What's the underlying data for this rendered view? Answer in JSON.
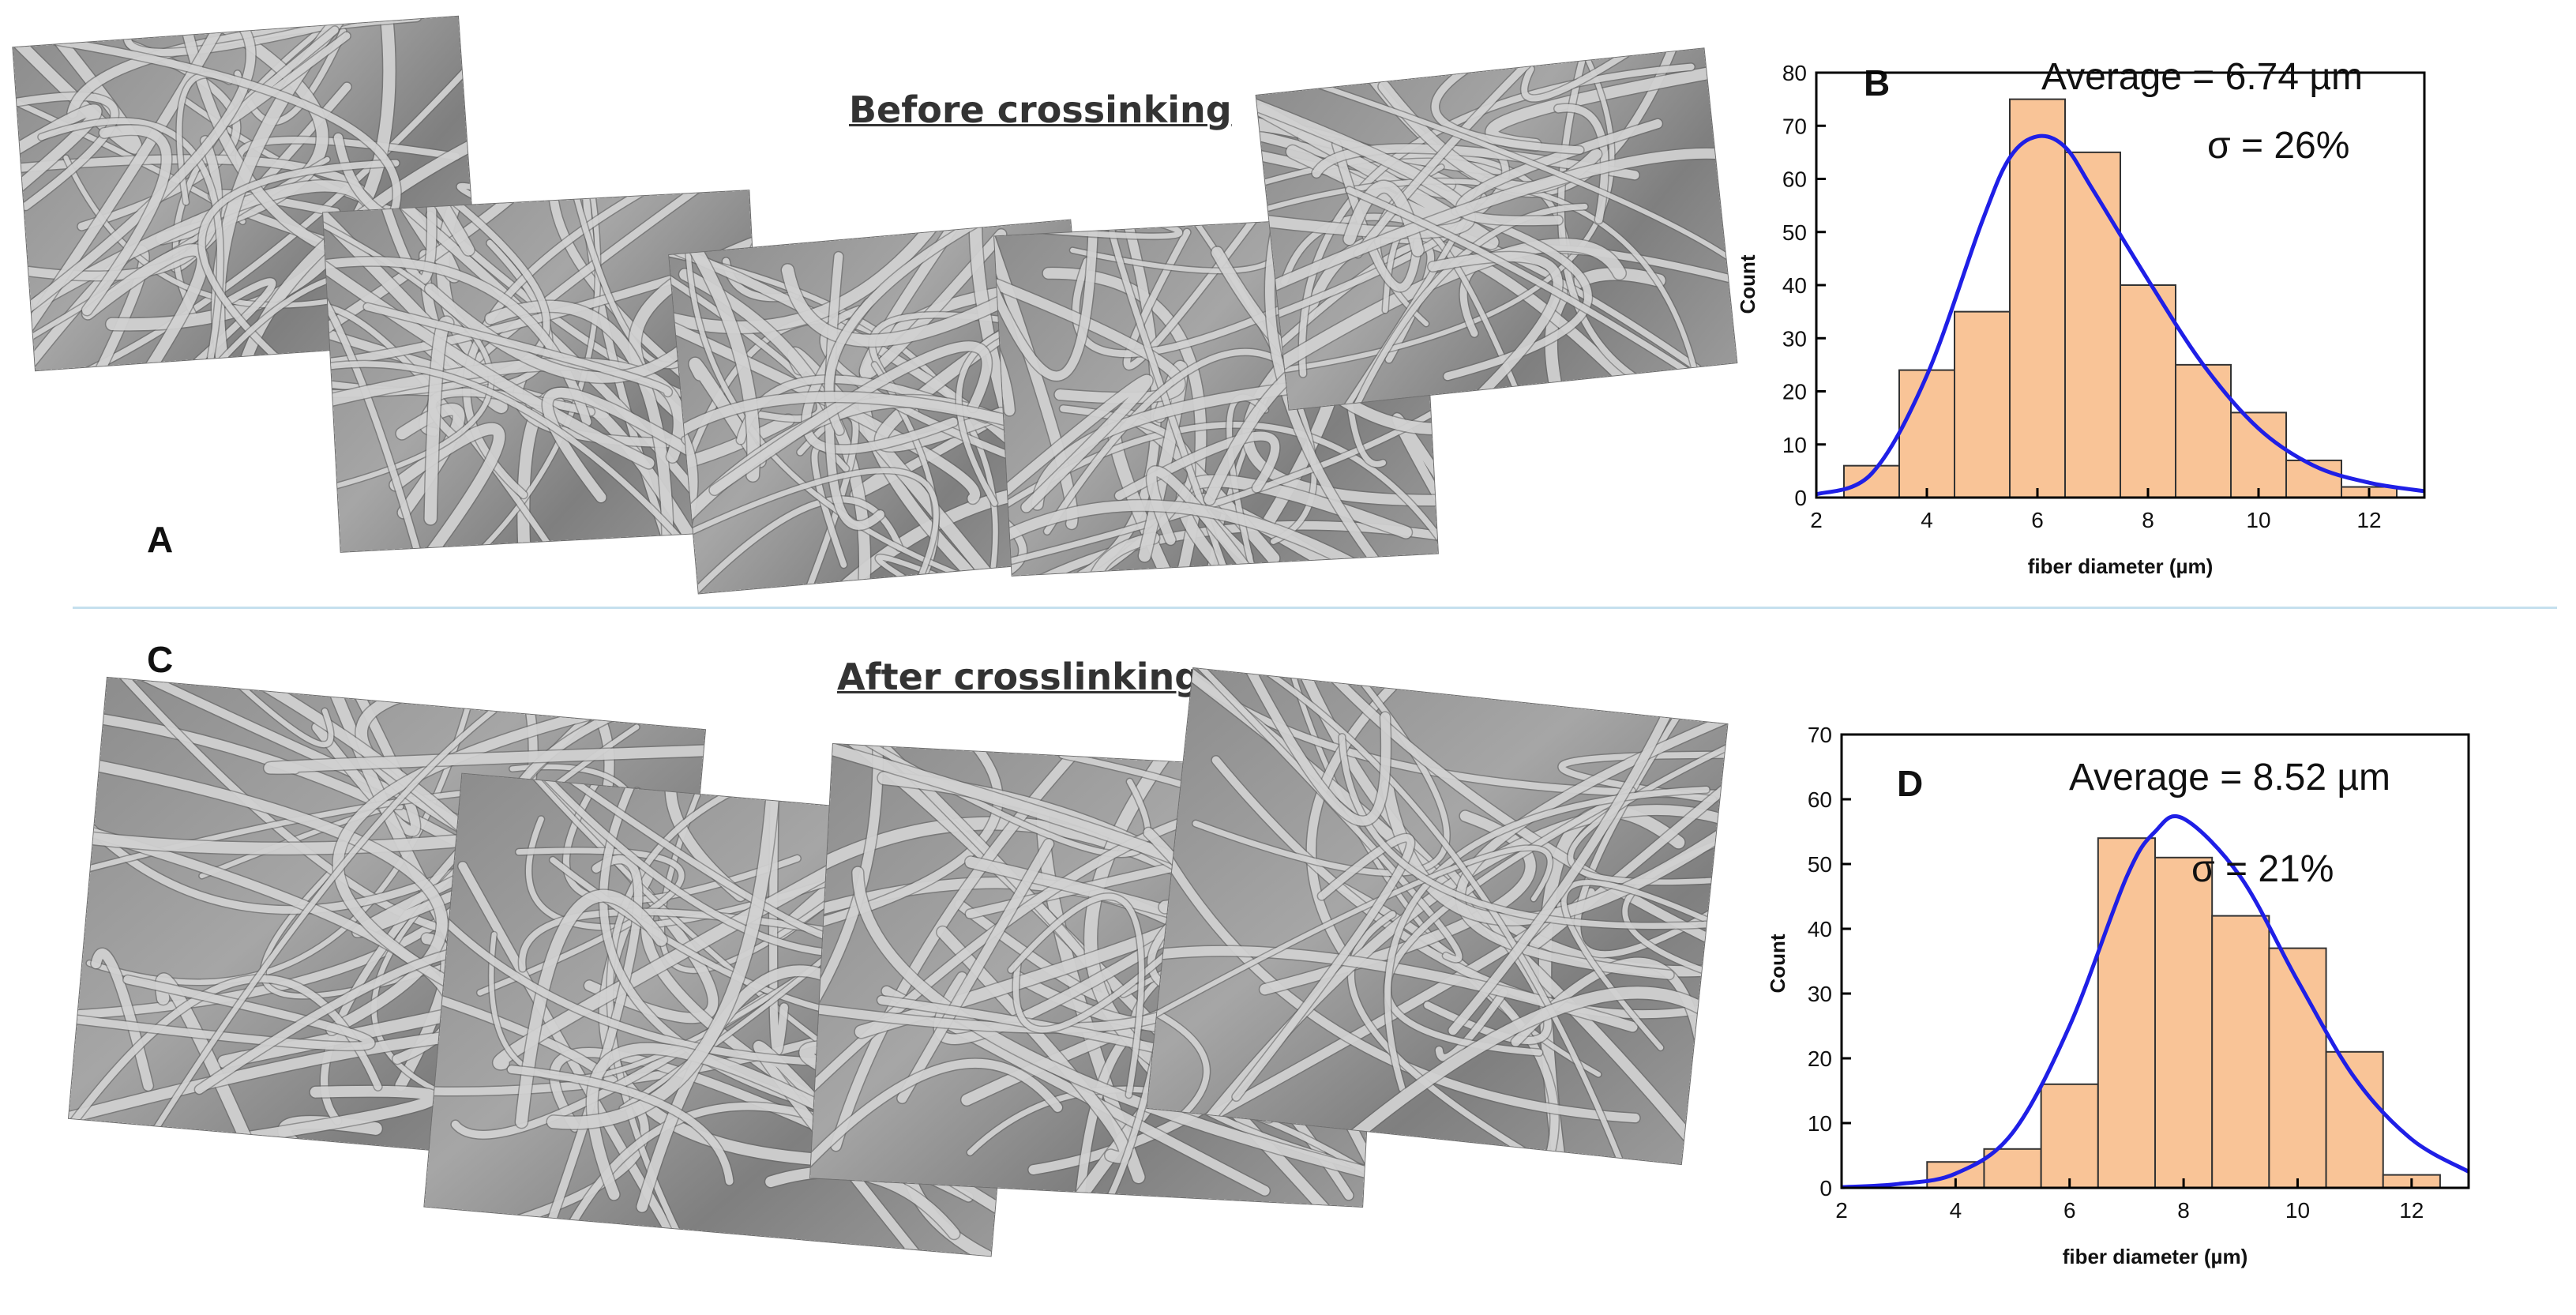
{
  "panels": {
    "a_label": "A",
    "b_label": "B",
    "c_label": "C",
    "d_label": "D",
    "top_title": "Before crossinking",
    "bottom_title": "After crosslinking"
  },
  "colors": {
    "bar_fill": "#f9c497",
    "bar_stroke": "#333333",
    "fit_line": "#1f1fe6",
    "divider": "#c5e0ee"
  },
  "chart_data": [
    {
      "type": "bar",
      "panel": "B",
      "xlabel": "fiber diameter (µm)",
      "ylabel": "Count",
      "xlim": [
        2,
        13
      ],
      "ylim": [
        0,
        80
      ],
      "xticks": [
        2,
        4,
        6,
        8,
        10,
        12
      ],
      "yticks": [
        0,
        10,
        20,
        30,
        40,
        50,
        60,
        70,
        80
      ],
      "bins": [
        {
          "x0": 2.5,
          "x1": 3.5,
          "count": 6
        },
        {
          "x0": 3.5,
          "x1": 4.5,
          "count": 24
        },
        {
          "x0": 4.5,
          "x1": 5.5,
          "count": 35
        },
        {
          "x0": 5.5,
          "x1": 6.5,
          "count": 75
        },
        {
          "x0": 6.5,
          "x1": 7.5,
          "count": 65
        },
        {
          "x0": 7.5,
          "x1": 8.5,
          "count": 40
        },
        {
          "x0": 8.5,
          "x1": 9.5,
          "count": 25
        },
        {
          "x0": 9.5,
          "x1": 10.5,
          "count": 16
        },
        {
          "x0": 10.5,
          "x1": 11.5,
          "count": 7
        },
        {
          "x0": 11.5,
          "x1": 12.5,
          "count": 2
        }
      ],
      "fit_curve": {
        "x": [
          2.0,
          3.0,
          4.0,
          5.0,
          5.5,
          6.0,
          6.5,
          7.0,
          8.0,
          9.0,
          10.0,
          11.0,
          12.0,
          13.0
        ],
        "y": [
          0.6,
          4.5,
          23,
          52,
          64,
          68,
          66,
          58,
          41,
          25,
          13,
          6,
          2.8,
          1.2
        ]
      },
      "annotations": {
        "average": "Average = 6.74 µm",
        "sigma": "σ = 26%"
      }
    },
    {
      "type": "bar",
      "panel": "D",
      "xlabel": "fiber diameter (µm)",
      "ylabel": "Count",
      "xlim": [
        2,
        13
      ],
      "ylim": [
        0,
        70
      ],
      "xticks": [
        2,
        4,
        6,
        8,
        10,
        12
      ],
      "yticks": [
        0,
        10,
        20,
        30,
        40,
        50,
        60,
        70
      ],
      "bins": [
        {
          "x0": 3.5,
          "x1": 4.5,
          "count": 4
        },
        {
          "x0": 4.5,
          "x1": 5.5,
          "count": 6
        },
        {
          "x0": 5.5,
          "x1": 6.5,
          "count": 16
        },
        {
          "x0": 6.5,
          "x1": 7.5,
          "count": 54
        },
        {
          "x0": 7.5,
          "x1": 8.5,
          "count": 51
        },
        {
          "x0": 8.5,
          "x1": 9.5,
          "count": 42
        },
        {
          "x0": 9.5,
          "x1": 10.5,
          "count": 37
        },
        {
          "x0": 10.5,
          "x1": 11.5,
          "count": 21
        },
        {
          "x0": 11.5,
          "x1": 12.5,
          "count": 2
        }
      ],
      "fit_curve": {
        "x": [
          2.0,
          3.0,
          4.0,
          5.0,
          6.0,
          7.0,
          7.5,
          8.0,
          9.0,
          10.0,
          11.0,
          12.0,
          13.0
        ],
        "y": [
          0.1,
          0.6,
          2.2,
          8.5,
          25,
          48,
          55,
          57,
          48,
          32,
          17,
          7.5,
          2.5
        ]
      },
      "annotations": {
        "average": "Average = 8.52 µm",
        "sigma": "σ = 21%"
      }
    }
  ]
}
